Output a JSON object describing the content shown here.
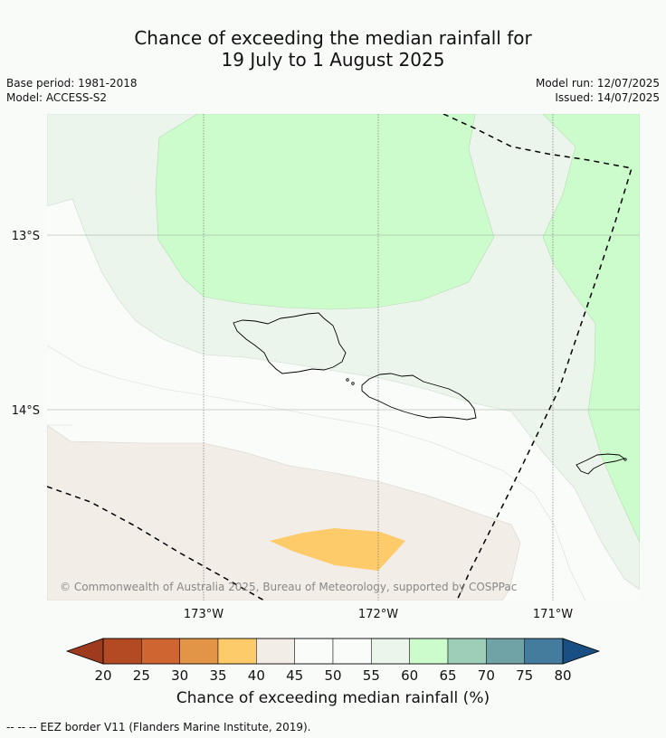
{
  "title_line1": "Chance of exceeding the median rainfall for",
  "title_line2": "19 July to 1 August 2025",
  "base_period": "Base period: 1981-2018",
  "model": "Model: ACCESS-S2",
  "model_run": "Model run: 12/07/2025",
  "issued": "Issued: 14/07/2025",
  "copyright": "© Commonwealth of Australia 2025, Bureau of Meteorology, supported by COSPPac",
  "lat_labels": [
    "13°S",
    "14°S"
  ],
  "lon_labels": [
    "173°W",
    "172°W",
    "171°W"
  ],
  "colorbar": {
    "label": "Chance of exceeding median rainfall (%)",
    "ticks": [
      "20",
      "25",
      "30",
      "35",
      "40",
      "45",
      "50",
      "55",
      "60",
      "65",
      "70",
      "75",
      "80"
    ],
    "colors": {
      "below_20": "#9e3a1e",
      "c20_25": "#b34a24",
      "c25_30": "#cf6632",
      "c30_35": "#e29546",
      "c35_40": "#fecb6b",
      "c40_45": "#f2ede7",
      "c45_50": "#fafcfa",
      "c50_55": "#fafcfa",
      "c55_60": "#ebf5eb",
      "c60_65": "#ccfccc",
      "c65_70": "#9dcfb8",
      "c70_75": "#6fa3a6",
      "c75_80": "#447c9e",
      "above_80": "#1a4f84"
    }
  },
  "footnote": "-- -- -- EEZ border V11 (Flanders Marine Institute, 2019)."
}
